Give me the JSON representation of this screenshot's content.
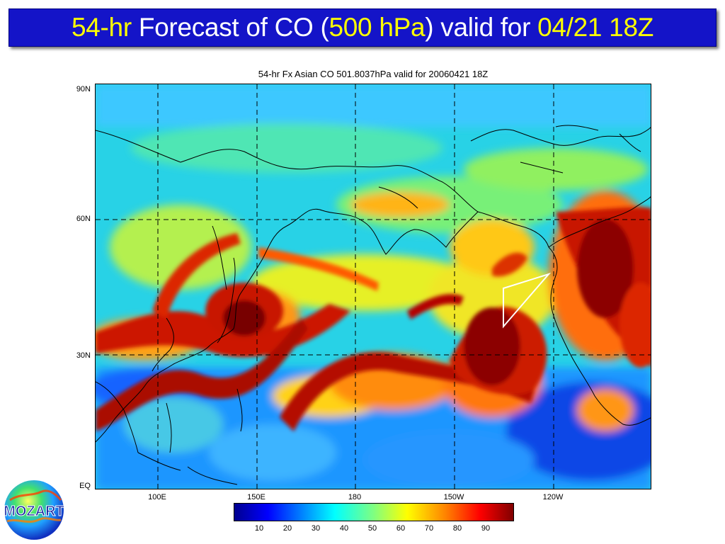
{
  "header": {
    "hours": "54-hr",
    "forecast_of": " Forecast of CO (",
    "pressure": "500 hPa",
    "valid_for": ") valid for ",
    "date": "04/21 18Z"
  },
  "plot": {
    "title": "54-hr Fx Asian CO 501.8037hPa valid for 20060421 18Z",
    "y_ticks": [
      "90N",
      "60N",
      "30N",
      "EQ"
    ],
    "x_ticks": [
      "100E",
      "150E",
      "180",
      "150W",
      "120W"
    ]
  },
  "colorbar": {
    "ticks": [
      "10",
      "20",
      "30",
      "40",
      "50",
      "60",
      "70",
      "80",
      "90"
    ],
    "colors": [
      "#00008f",
      "#0000ff",
      "#0080ff",
      "#00ffff",
      "#80ff80",
      "#ffff00",
      "#ff8000",
      "#ff0000",
      "#800000"
    ]
  },
  "logo": {
    "text": "MOZART"
  },
  "colors": {
    "title_bar": "#1414c8",
    "title_highlight": "#ffff00",
    "title_text": "#ffffff"
  }
}
